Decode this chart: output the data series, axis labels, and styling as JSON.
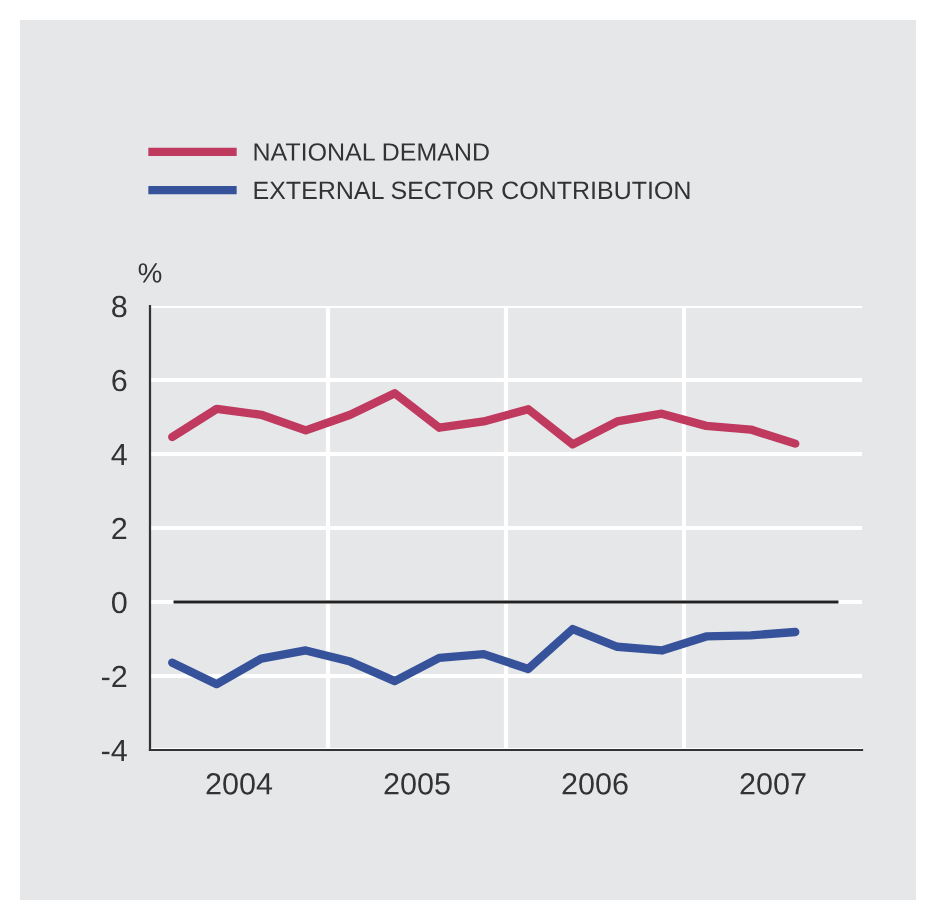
{
  "chart_data": {
    "type": "line",
    "ylabel": "%",
    "x": [
      2004.125,
      2004.375,
      2004.625,
      2004.875,
      2005.125,
      2005.375,
      2005.625,
      2005.875,
      2006.125,
      2006.375,
      2006.625,
      2006.875,
      2007.125,
      2007.375,
      2007.625
    ],
    "series": [
      {
        "name": "NATIONAL DEMAND",
        "color": "#c0395e",
        "values": [
          4.46,
          5.22,
          5.06,
          4.64,
          5.06,
          5.64,
          4.71,
          4.88,
          5.21,
          4.26,
          4.88,
          5.09,
          4.76,
          4.66,
          4.28
        ]
      },
      {
        "name": "EXTERNAL SECTOR CONTRIBUTION",
        "color": "#36529b",
        "values": [
          -1.64,
          -2.22,
          -1.53,
          -1.31,
          -1.61,
          -2.14,
          -1.51,
          -1.41,
          -1.81,
          -0.73,
          -1.21,
          -1.31,
          -0.93,
          -0.9,
          -0.81
        ]
      }
    ],
    "xlim": [
      2004,
      2008
    ],
    "xticks": [
      {
        "value": 2004.5,
        "label": "2004"
      },
      {
        "value": 2005,
        "label": null
      },
      {
        "value": 2005.5,
        "label": "2005"
      },
      {
        "value": 2006,
        "label": null
      },
      {
        "value": 2006.5,
        "label": "2006"
      },
      {
        "value": 2007,
        "label": null
      },
      {
        "value": 2007.5,
        "label": "2007"
      }
    ],
    "ylim": [
      -4,
      8
    ],
    "yticks": [
      -4,
      -2,
      0,
      2,
      4,
      6,
      8
    ],
    "grid": true,
    "legend": "top left",
    "marker": "none",
    "line_style": "solid",
    "ref_lines": [
      {
        "axis": "y",
        "value": 0,
        "color": "#222222",
        "line_style": "solid"
      }
    ]
  }
}
